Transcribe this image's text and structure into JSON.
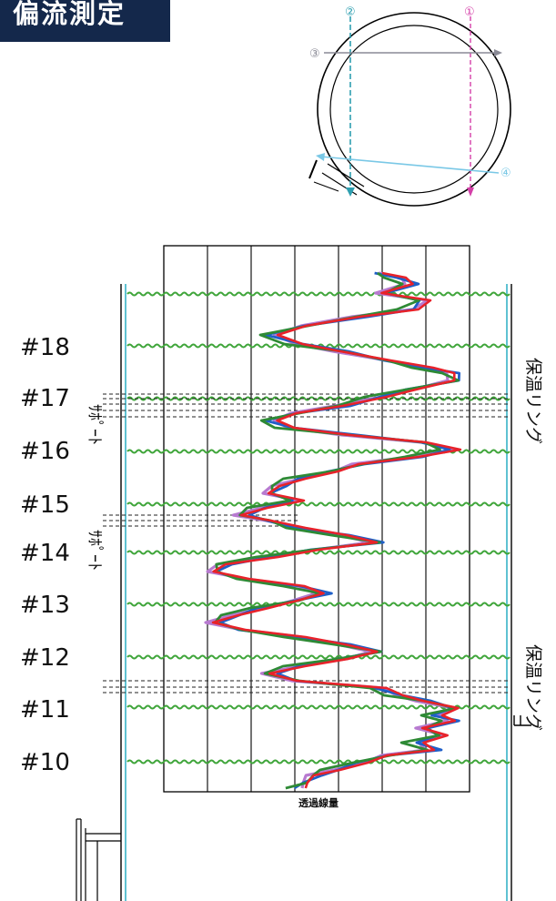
{
  "title": "偏流測定",
  "pipe_section": {
    "markers": [
      "①",
      "②",
      "③",
      "④"
    ]
  },
  "segments": [
    "#18",
    "#17",
    "#16",
    "#15",
    "#14",
    "#13",
    "#12",
    "#11",
    "#10"
  ],
  "annotations": {
    "support_upper": "ｻﾎﾟｰﾄ",
    "support_lower": "ｻﾎﾟｰﾄ",
    "insulation_ring_upper": "保温リング",
    "insulation_ring_lower": "保温リング"
  },
  "axis_label": "透過線量",
  "colors": {
    "title_bg": "#14284b",
    "profile_red": "#e8222a",
    "profile_green": "#2e8a35",
    "profile_blue": "#1f5fc8",
    "profile_violet": "#b77ad0",
    "wave": "#3fa53a",
    "pipe_wall": "#5fc2d2",
    "marker_teal": "#2e9fb0",
    "marker_magenta": "#d43fa8",
    "marker_cyan": "#7ac8e6",
    "marker_grey": "#8a8a96"
  }
}
